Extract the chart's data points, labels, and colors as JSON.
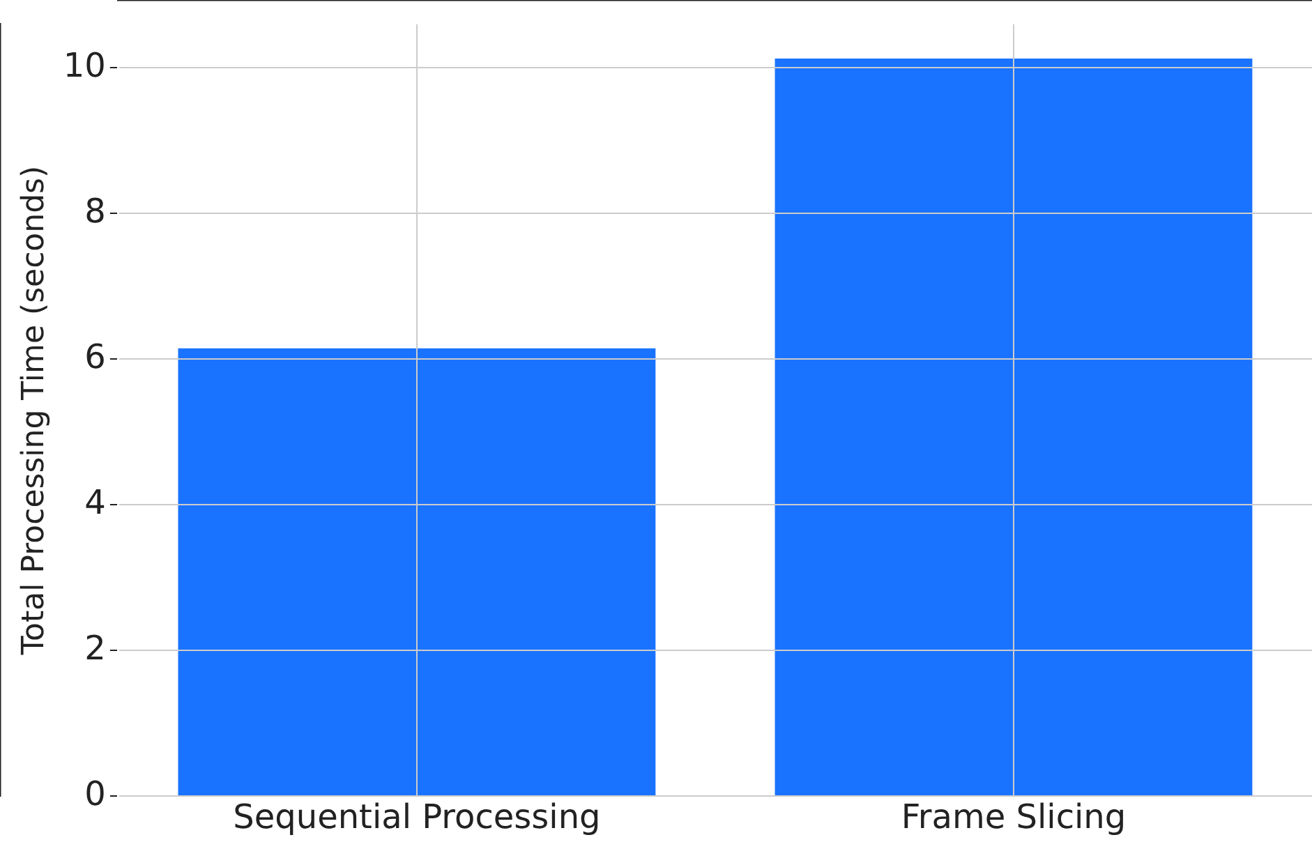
{
  "chart_data": {
    "type": "bar",
    "ylabel": "Total Processing Time (seconds)",
    "categories": [
      "Sequential Processing",
      "Frame Slicing"
    ],
    "values": [
      6.15,
      10.13
    ],
    "color": "#1a73ff",
    "ylim": [
      0,
      10.6
    ],
    "yticks": [
      0,
      2,
      4,
      6,
      8,
      10
    ],
    "grid": true
  }
}
